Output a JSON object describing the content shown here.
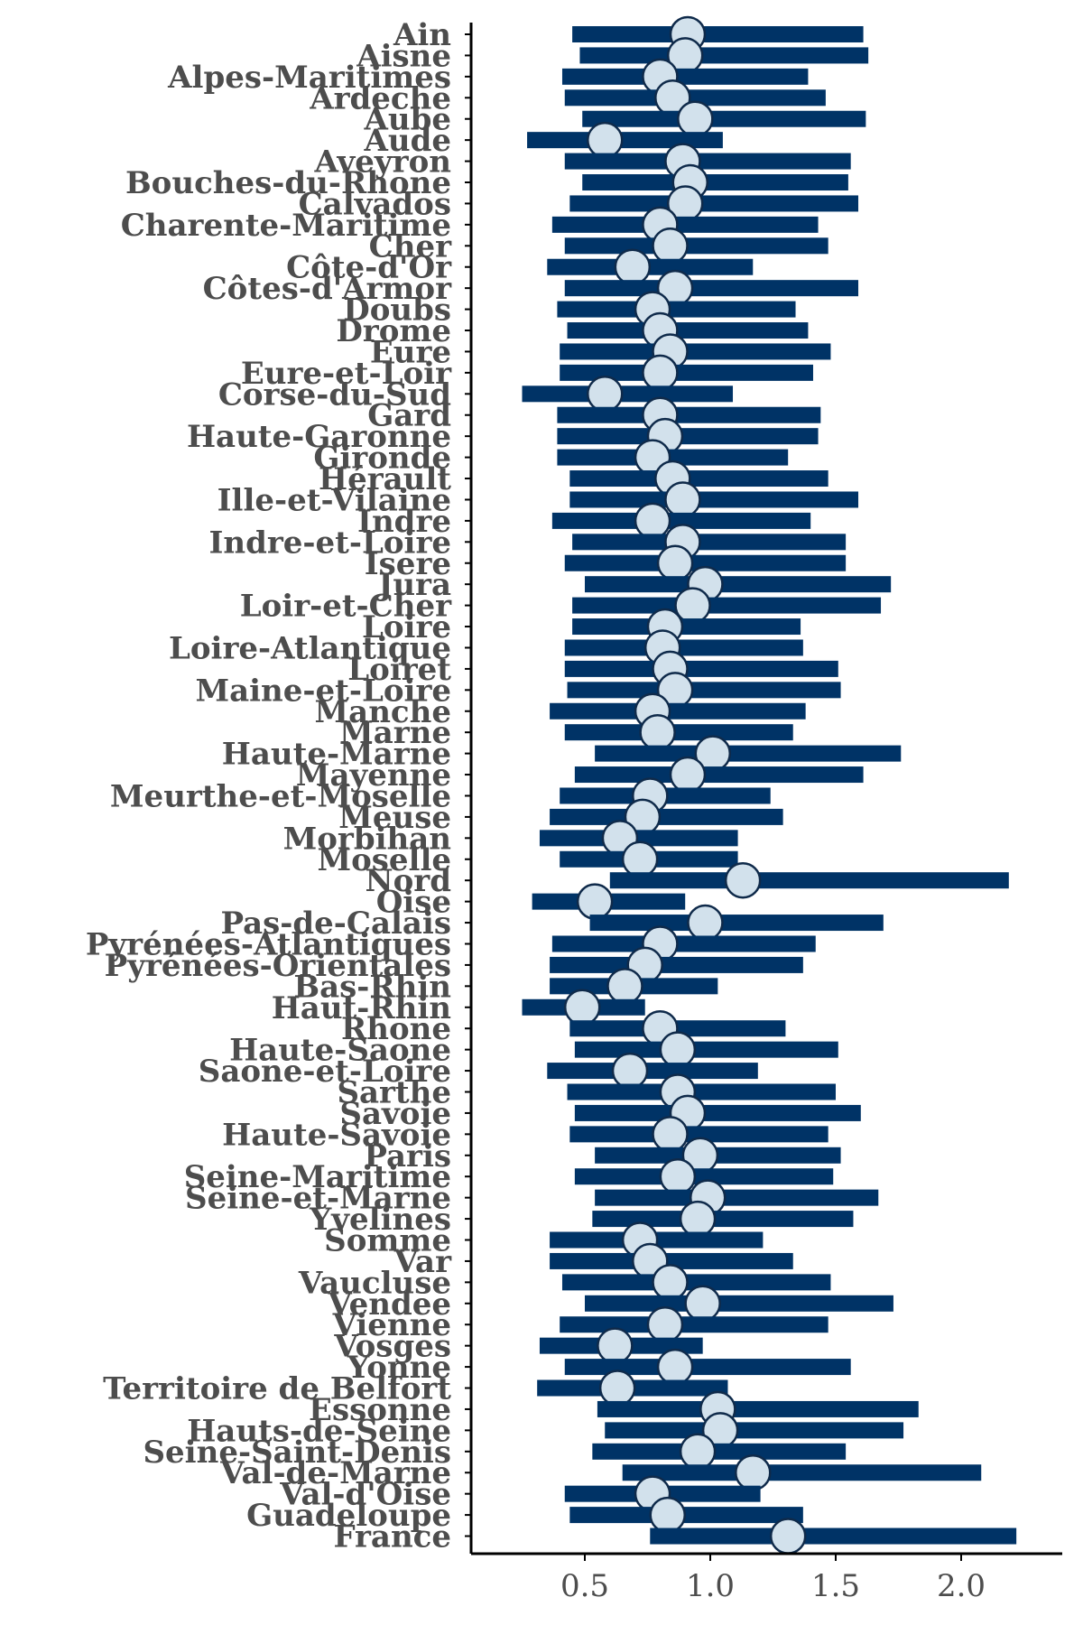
{
  "chart_data": {
    "type": "forest",
    "title": "",
    "xlabel": "",
    "ylabel": "",
    "xlim": [
      0.25,
      2.45
    ],
    "xticks": [
      0.5,
      1.0,
      1.5,
      2.0
    ],
    "xtick_labels": [
      "0.5",
      "1.0",
      "1.5",
      "2.0"
    ],
    "grid": false,
    "colors": {
      "interval": "#003366",
      "point_fill": "#d2e1ec",
      "point_stroke": "#0f2a4a"
    },
    "rows": [
      {
        "label": "Ain",
        "estimate": 0.91,
        "low": 0.45,
        "high": 1.61
      },
      {
        "label": "Aisne",
        "estimate": 0.9,
        "low": 0.48,
        "high": 1.63
      },
      {
        "label": "Alpes-Maritimes",
        "estimate": 0.8,
        "low": 0.41,
        "high": 1.39
      },
      {
        "label": "Ardeche",
        "estimate": 0.85,
        "low": 0.42,
        "high": 1.46
      },
      {
        "label": "Aube",
        "estimate": 0.94,
        "low": 0.49,
        "high": 1.62
      },
      {
        "label": "Aude",
        "estimate": 0.58,
        "low": 0.27,
        "high": 1.05
      },
      {
        "label": "Aveyron",
        "estimate": 0.89,
        "low": 0.42,
        "high": 1.56
      },
      {
        "label": "Bouches-du-Rhone",
        "estimate": 0.92,
        "low": 0.49,
        "high": 1.55
      },
      {
        "label": "Calvados",
        "estimate": 0.9,
        "low": 0.44,
        "high": 1.59
      },
      {
        "label": "Charente-Maritime",
        "estimate": 0.8,
        "low": 0.37,
        "high": 1.43
      },
      {
        "label": "Cher",
        "estimate": 0.84,
        "low": 0.42,
        "high": 1.47
      },
      {
        "label": "Côte-d'Or",
        "estimate": 0.69,
        "low": 0.35,
        "high": 1.17
      },
      {
        "label": "Côtes-d'Armor",
        "estimate": 0.86,
        "low": 0.42,
        "high": 1.59
      },
      {
        "label": "Doubs",
        "estimate": 0.77,
        "low": 0.39,
        "high": 1.34
      },
      {
        "label": "Drome",
        "estimate": 0.8,
        "low": 0.43,
        "high": 1.39
      },
      {
        "label": "Eure",
        "estimate": 0.84,
        "low": 0.4,
        "high": 1.48
      },
      {
        "label": "Eure-et-Loir",
        "estimate": 0.8,
        "low": 0.4,
        "high": 1.41
      },
      {
        "label": "Corse-du-Sud",
        "estimate": 0.58,
        "low": 0.25,
        "high": 1.09
      },
      {
        "label": "Gard",
        "estimate": 0.8,
        "low": 0.39,
        "high": 1.44
      },
      {
        "label": "Haute-Garonne",
        "estimate": 0.82,
        "low": 0.39,
        "high": 1.43
      },
      {
        "label": "Gironde",
        "estimate": 0.77,
        "low": 0.39,
        "high": 1.31
      },
      {
        "label": "Hérault",
        "estimate": 0.85,
        "low": 0.44,
        "high": 1.47
      },
      {
        "label": "Ille-et-Vilaine",
        "estimate": 0.89,
        "low": 0.44,
        "high": 1.59
      },
      {
        "label": "Indre",
        "estimate": 0.77,
        "low": 0.37,
        "high": 1.4
      },
      {
        "label": "Indre-et-Loire",
        "estimate": 0.89,
        "low": 0.45,
        "high": 1.54
      },
      {
        "label": "Isere",
        "estimate": 0.86,
        "low": 0.42,
        "high": 1.54
      },
      {
        "label": "Jura",
        "estimate": 0.98,
        "low": 0.5,
        "high": 1.72
      },
      {
        "label": "Loir-et-Cher",
        "estimate": 0.93,
        "low": 0.45,
        "high": 1.68
      },
      {
        "label": "Loire",
        "estimate": 0.82,
        "low": 0.45,
        "high": 1.36
      },
      {
        "label": "Loire-Atlantique",
        "estimate": 0.81,
        "low": 0.42,
        "high": 1.37
      },
      {
        "label": "Loiret",
        "estimate": 0.84,
        "low": 0.42,
        "high": 1.51
      },
      {
        "label": "Maine-et-Loire",
        "estimate": 0.86,
        "low": 0.43,
        "high": 1.52
      },
      {
        "label": "Manche",
        "estimate": 0.77,
        "low": 0.36,
        "high": 1.38
      },
      {
        "label": "Marne",
        "estimate": 0.79,
        "low": 0.42,
        "high": 1.33
      },
      {
        "label": "Haute-Marne",
        "estimate": 1.01,
        "low": 0.54,
        "high": 1.76
      },
      {
        "label": "Mayenne",
        "estimate": 0.91,
        "low": 0.46,
        "high": 1.61
      },
      {
        "label": "Meurthe-et-Moselle",
        "estimate": 0.76,
        "low": 0.4,
        "high": 1.24
      },
      {
        "label": "Meuse",
        "estimate": 0.73,
        "low": 0.36,
        "high": 1.29
      },
      {
        "label": "Morbihan",
        "estimate": 0.64,
        "low": 0.32,
        "high": 1.11
      },
      {
        "label": "Moselle",
        "estimate": 0.72,
        "low": 0.4,
        "high": 1.11
      },
      {
        "label": "Nord",
        "estimate": 1.13,
        "low": 0.6,
        "high": 2.19
      },
      {
        "label": "Oise",
        "estimate": 0.54,
        "low": 0.29,
        "high": 0.9
      },
      {
        "label": "Pas-de-Calais",
        "estimate": 0.98,
        "low": 0.52,
        "high": 1.69
      },
      {
        "label": "Pyrénées-Atlantiques",
        "estimate": 0.8,
        "low": 0.37,
        "high": 1.42
      },
      {
        "label": "Pyrénées-Orientales",
        "estimate": 0.74,
        "low": 0.36,
        "high": 1.37
      },
      {
        "label": "Bas-Rhin",
        "estimate": 0.66,
        "low": 0.36,
        "high": 1.03
      },
      {
        "label": "Haut-Rhin",
        "estimate": 0.49,
        "low": 0.25,
        "high": 0.74
      },
      {
        "label": "Rhone",
        "estimate": 0.8,
        "low": 0.44,
        "high": 1.3
      },
      {
        "label": "Haute-Saone",
        "estimate": 0.87,
        "low": 0.46,
        "high": 1.51
      },
      {
        "label": "Saone-et-Loire",
        "estimate": 0.68,
        "low": 0.35,
        "high": 1.19
      },
      {
        "label": "Sarthe",
        "estimate": 0.87,
        "low": 0.43,
        "high": 1.5
      },
      {
        "label": "Savoie",
        "estimate": 0.91,
        "low": 0.46,
        "high": 1.6
      },
      {
        "label": "Haute-Savoie",
        "estimate": 0.84,
        "low": 0.44,
        "high": 1.47
      },
      {
        "label": "Paris",
        "estimate": 0.96,
        "low": 0.54,
        "high": 1.52
      },
      {
        "label": "Seine-Maritime",
        "estimate": 0.87,
        "low": 0.46,
        "high": 1.49
      },
      {
        "label": "Seine-et-Marne",
        "estimate": 0.99,
        "low": 0.54,
        "high": 1.67
      },
      {
        "label": "Yvelines",
        "estimate": 0.95,
        "low": 0.53,
        "high": 1.57
      },
      {
        "label": "Somme",
        "estimate": 0.72,
        "low": 0.36,
        "high": 1.21
      },
      {
        "label": "Var",
        "estimate": 0.76,
        "low": 0.36,
        "high": 1.33
      },
      {
        "label": "Vaucluse",
        "estimate": 0.84,
        "low": 0.41,
        "high": 1.48
      },
      {
        "label": "Vendee",
        "estimate": 0.97,
        "low": 0.5,
        "high": 1.73
      },
      {
        "label": "Vienne",
        "estimate": 0.82,
        "low": 0.4,
        "high": 1.47
      },
      {
        "label": "Vosges",
        "estimate": 0.62,
        "low": 0.32,
        "high": 0.97
      },
      {
        "label": "Yonne",
        "estimate": 0.86,
        "low": 0.42,
        "high": 1.56
      },
      {
        "label": "Territoire de Belfort",
        "estimate": 0.63,
        "low": 0.31,
        "high": 1.07
      },
      {
        "label": "Essonne",
        "estimate": 1.03,
        "low": 0.55,
        "high": 1.83
      },
      {
        "label": "Hauts-de-Seine",
        "estimate": 1.04,
        "low": 0.58,
        "high": 1.77
      },
      {
        "label": "Seine-Saint-Denis",
        "estimate": 0.95,
        "low": 0.53,
        "high": 1.54
      },
      {
        "label": "Val-de-Marne",
        "estimate": 1.17,
        "low": 0.65,
        "high": 2.08
      },
      {
        "label": "Val-d'Oise",
        "estimate": 0.77,
        "low": 0.42,
        "high": 1.2
      },
      {
        "label": "Guadeloupe",
        "estimate": 0.83,
        "low": 0.44,
        "high": 1.37
      },
      {
        "label": "France",
        "estimate": 1.31,
        "low": 0.76,
        "high": 2.22
      }
    ]
  }
}
